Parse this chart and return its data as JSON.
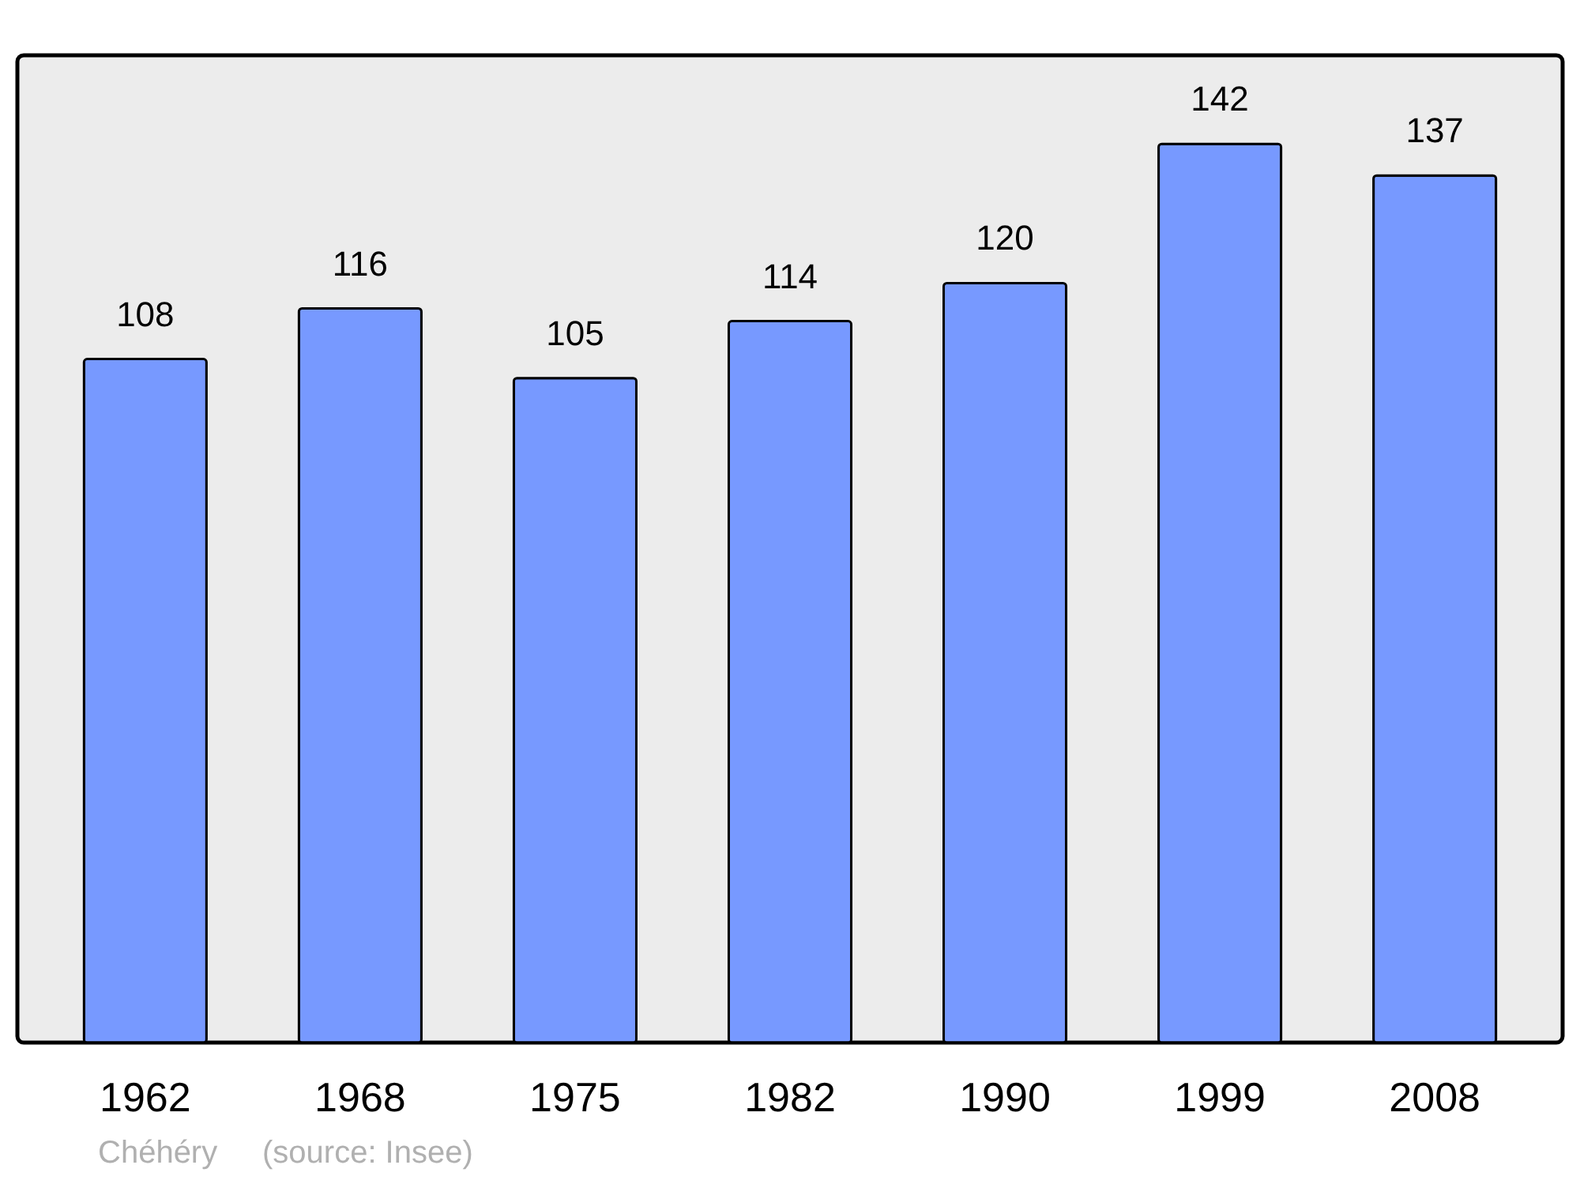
{
  "chart_data": {
    "type": "bar",
    "categories": [
      "1962",
      "1968",
      "1975",
      "1982",
      "1990",
      "1999",
      "2008"
    ],
    "values": [
      108,
      116,
      105,
      114,
      120,
      142,
      137
    ],
    "color": "#7799ff",
    "ylim": [
      0,
      156
    ],
    "data_labels": true,
    "tick_labels": "x",
    "annotations": [
      "Chéhéry",
      "(source: Insee)"
    ]
  }
}
